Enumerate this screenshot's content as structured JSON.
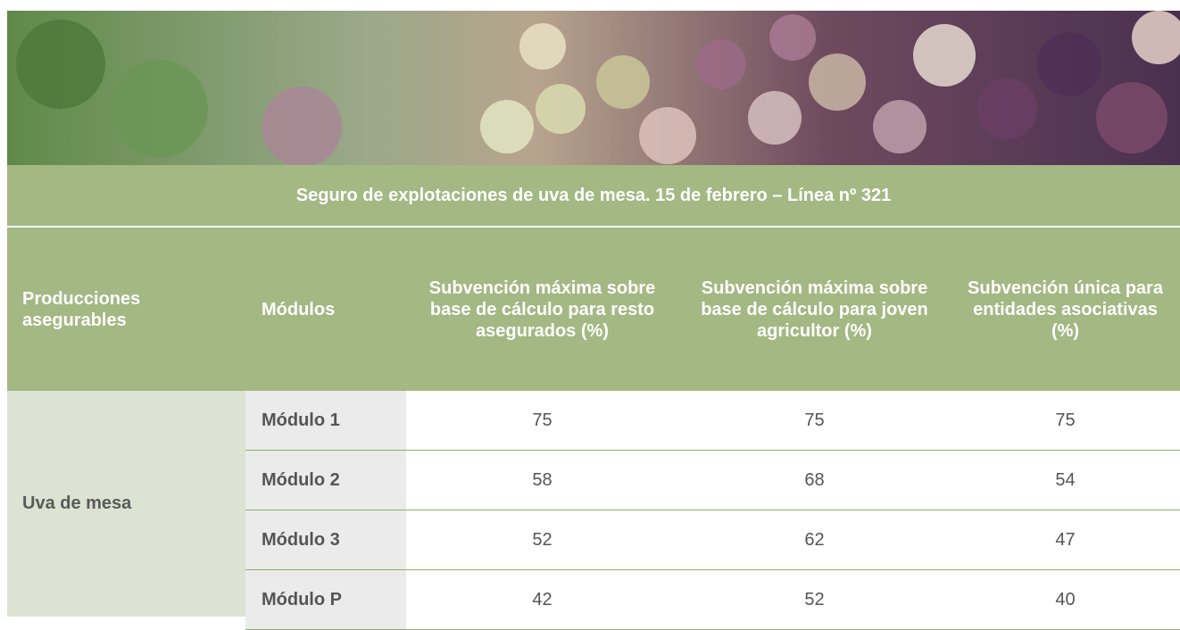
{
  "table": {
    "title": "Seguro de explotaciones de uva de mesa. 15 de febrero – Línea nº 321",
    "header": [
      "Producciones asegurables",
      "Módulos",
      "Subvención máxima sobre base de cálculo para resto asegurados (%)",
      "Subvención máxima sobre base de cálculo para joven agricultor (%)",
      "Subvención única para entidades asociativas (%)"
    ],
    "product": "Uva de mesa",
    "rows": [
      [
        "Módulo 1",
        75,
        75,
        75
      ],
      [
        "Módulo 2",
        58,
        68,
        54
      ],
      [
        "Módulo 3",
        52,
        62,
        47
      ],
      [
        "Módulo P",
        42,
        52,
        40
      ]
    ]
  }
}
